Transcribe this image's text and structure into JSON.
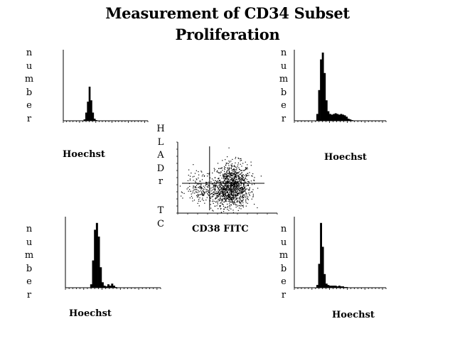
{
  "title_lines": [
    "Measurement of CD34 Subset",
    "Proliferation"
  ],
  "histogram_y_label": "number",
  "histogram_x_label": "Hoechst",
  "scatter_y_label_top": "HLADr",
  "scatter_y_label_bottom": "TC",
  "scatter_x_label": "CD38 FITC",
  "chart_data": [
    {
      "type": "histogram",
      "panel": "top-left",
      "xlabel": "Hoechst",
      "ylabel": "number",
      "ylim": [
        0,
        100
      ],
      "bins": 50,
      "counts": [
        0,
        0,
        0,
        0,
        0,
        0,
        0,
        0,
        0,
        0,
        0,
        0,
        2,
        12,
        28,
        50,
        30,
        12,
        3,
        1,
        0,
        0,
        0,
        0,
        0,
        0,
        0,
        0,
        0,
        0,
        0,
        0,
        0,
        0,
        0,
        0,
        0,
        0,
        0,
        0,
        0,
        0,
        0,
        0,
        0,
        0,
        0,
        0,
        0,
        0
      ]
    },
    {
      "type": "histogram",
      "panel": "top-right",
      "xlabel": "Hoechst",
      "ylabel": "number",
      "ylim": [
        0,
        100
      ],
      "bins": 50,
      "counts": [
        0,
        0,
        0,
        0,
        0,
        0,
        0,
        0,
        0,
        0,
        0,
        0,
        10,
        45,
        90,
        100,
        70,
        30,
        14,
        10,
        9,
        10,
        11,
        10,
        9,
        10,
        9,
        8,
        6,
        3,
        2,
        1,
        0,
        0,
        0,
        0,
        0,
        0,
        0,
        0,
        0,
        0,
        0,
        0,
        0,
        0,
        0,
        0,
        0,
        0
      ]
    },
    {
      "type": "histogram",
      "panel": "bottom-left",
      "xlabel": "Hoechst",
      "ylabel": "number",
      "ylim": [
        0,
        100
      ],
      "bins": 50,
      "counts": [
        0,
        0,
        0,
        0,
        0,
        0,
        0,
        0,
        0,
        0,
        0,
        0,
        0,
        5,
        40,
        85,
        95,
        75,
        30,
        8,
        3,
        2,
        5,
        3,
        6,
        3,
        1,
        0,
        0,
        0,
        0,
        0,
        0,
        0,
        0,
        0,
        0,
        0,
        0,
        0,
        0,
        0,
        0,
        0,
        0,
        0,
        0,
        0,
        0,
        0
      ]
    },
    {
      "type": "histogram",
      "panel": "bottom-right",
      "xlabel": "Hoechst",
      "ylabel": "number",
      "ylim": [
        0,
        100
      ],
      "bins": 50,
      "counts": [
        0,
        0,
        0,
        0,
        0,
        0,
        0,
        0,
        0,
        0,
        0,
        0,
        4,
        35,
        95,
        60,
        20,
        6,
        4,
        3,
        3,
        3,
        3,
        2,
        3,
        2,
        2,
        1,
        1,
        0,
        0,
        0,
        0,
        0,
        0,
        0,
        0,
        0,
        0,
        0,
        0,
        0,
        0,
        0,
        0,
        0,
        0,
        0,
        0,
        0
      ]
    },
    {
      "type": "scatter",
      "panel": "center",
      "xlabel": "CD38 FITC",
      "ylabel": "HLADr TC",
      "xlim": [
        0,
        100
      ],
      "ylim": [
        0,
        100
      ],
      "gates": {
        "x": 32,
        "y": 42
      },
      "populations": [
        {
          "cx": 55,
          "cy": 40,
          "sx": 9,
          "sy": 16,
          "n": 900
        },
        {
          "cx": 48,
          "cy": 30,
          "sx": 10,
          "sy": 9,
          "n": 350
        },
        {
          "cx": 24,
          "cy": 30,
          "sx": 8,
          "sy": 9,
          "n": 130
        },
        {
          "cx": 18,
          "cy": 48,
          "sx": 6,
          "sy": 8,
          "n": 40
        }
      ]
    }
  ]
}
